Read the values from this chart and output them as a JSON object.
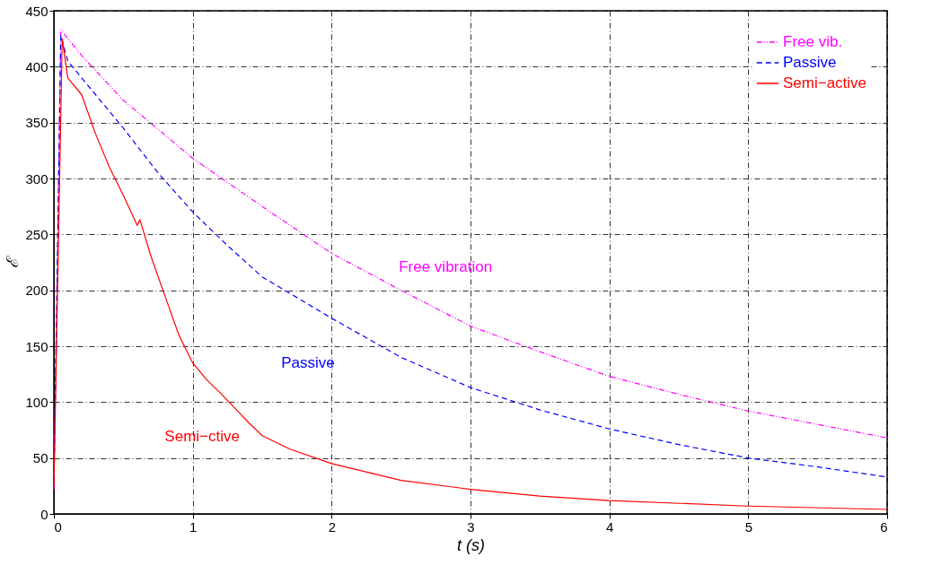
{
  "chart_data": {
    "type": "line",
    "xlabel": "t (s)",
    "ylabel": "ℰ",
    "xlim": [
      0,
      6
    ],
    "ylim": [
      0,
      450
    ],
    "xticks": [
      0,
      1,
      2,
      3,
      4,
      5,
      6
    ],
    "yticks": [
      0,
      50,
      100,
      150,
      200,
      250,
      300,
      350,
      400,
      450
    ],
    "grid": true,
    "legend": "top right",
    "annotations": [
      "Free vibration",
      "Passive",
      "Semi−ctive"
    ],
    "series": [
      {
        "name": "Free vib.",
        "color": "#ff00ff",
        "line_style": "dotted",
        "x": [
          0,
          0.05,
          0.2,
          0.5,
          1.0,
          1.5,
          2.0,
          2.5,
          3.0,
          3.5,
          4.0,
          4.5,
          5.0,
          5.5,
          6.0
        ],
        "values": [
          22,
          433,
          410,
          370,
          318,
          275,
          233,
          200,
          168,
          145,
          123,
          107,
          92,
          80,
          68
        ]
      },
      {
        "name": "Passive",
        "color": "#0000ff",
        "line_style": "dashed",
        "x": [
          0,
          0.05,
          0.1,
          0.3,
          0.5,
          0.75,
          1.0,
          1.25,
          1.5,
          2.0,
          2.5,
          3.0,
          3.5,
          4.0,
          4.5,
          5.0,
          5.5,
          6.0
        ],
        "values": [
          22,
          428,
          405,
          375,
          345,
          305,
          270,
          240,
          212,
          175,
          140,
          113,
          93,
          76,
          62,
          50,
          42,
          33
        ]
      },
      {
        "name": "Semi−active",
        "color": "#ff0000",
        "line_style": "solid",
        "x": [
          0,
          0.06,
          0.1,
          0.2,
          0.3,
          0.4,
          0.5,
          0.6,
          0.62,
          0.7,
          0.8,
          0.9,
          1.0,
          1.1,
          1.2,
          1.3,
          1.4,
          1.5,
          1.7,
          2.0,
          2.5,
          3.0,
          3.5,
          4.0,
          5.0,
          6.0
        ],
        "values": [
          22,
          425,
          390,
          375,
          340,
          310,
          285,
          258,
          263,
          230,
          195,
          160,
          135,
          120,
          108,
          95,
          82,
          70,
          58,
          45,
          30,
          22,
          16,
          12,
          7,
          4
        ]
      }
    ]
  }
}
